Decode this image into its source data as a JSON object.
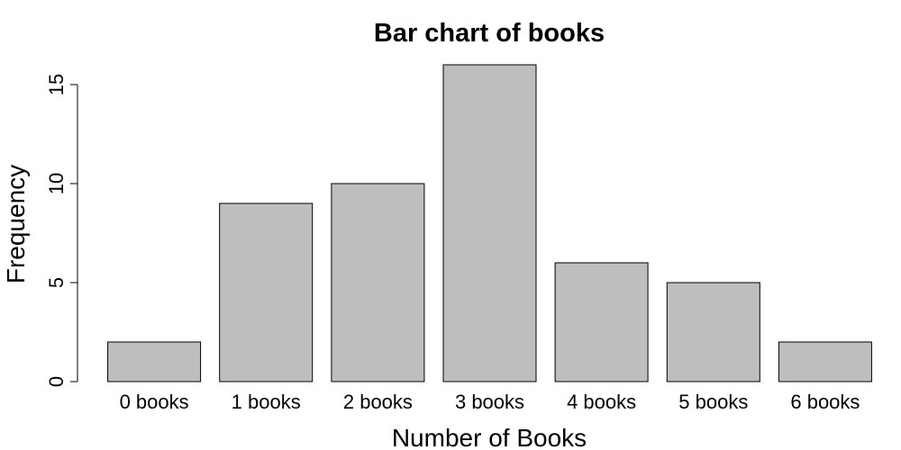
{
  "chart_data": {
    "type": "bar",
    "title": "Bar chart of books",
    "xlabel": "Number of Books",
    "ylabel": "Frequency",
    "categories": [
      "0 books",
      "1 books",
      "2 books",
      "3 books",
      "4 books",
      "5 books",
      "6 books"
    ],
    "values": [
      2,
      9,
      10,
      16,
      6,
      5,
      2
    ],
    "ylim": [
      0,
      16
    ],
    "yticks": [
      0,
      5,
      10,
      15
    ],
    "grid": false,
    "bar_color": "#bebebe",
    "bar_edge_color": "#000000"
  }
}
